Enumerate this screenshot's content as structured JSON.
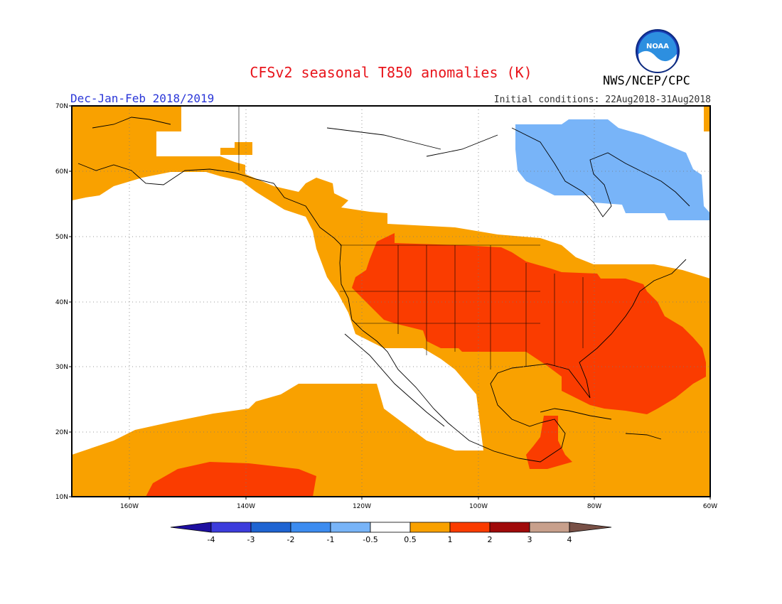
{
  "header": {
    "title": "CFSv2 seasonal T850 anomalies (K)",
    "agency": "NWS/NCEP/CPC",
    "logo_text": "NOAA",
    "season": "Dec-Jan-Feb 2018/2019",
    "initial_conditions": "Initial conditions: 22Aug2018-31Aug2018"
  },
  "map": {
    "projection": "equirectangular",
    "lon_range": [
      -171,
      -60
    ],
    "lat_range": [
      10,
      70
    ],
    "grid": "dotted 10° lat/lon",
    "lat_ticks": [
      "10N",
      "20N",
      "30N",
      "40N",
      "50N",
      "60N",
      "70N"
    ],
    "lon_ticks": [
      "160W",
      "140W",
      "120W",
      "100W",
      "80W",
      "60W"
    ],
    "anomaly_regions": [
      {
        "class": "-1 to -0.5",
        "color": "#78b4f8",
        "area": "Hudson Bay / Quebec / Labrador"
      },
      {
        "class": "0.5 to 1",
        "color": "#f9a100",
        "area": "Alaska, Pacific Northwest, Canada prairies, Gulf of Mexico, Caribbean, subtropical Pacific, western Atlantic"
      },
      {
        "class": "1 to 2",
        "color": "#fa3c00",
        "area": "Contiguous US interior and east, southeast Atlantic coast, Central America, subtropical Pacific near 12-15N 140-155W"
      }
    ]
  },
  "colorbar": {
    "labels": [
      "-4",
      "-3",
      "-2",
      "-1",
      "-0.5",
      "0.5",
      "1",
      "2",
      "3",
      "4"
    ],
    "colors": [
      "#1e0fa0",
      "#3c3cdc",
      "#1e64d2",
      "#3c8cf0",
      "#78b4f8",
      "#ffffff",
      "#f9a100",
      "#fa3c00",
      "#a00a0a",
      "#c8a08c",
      "#785046"
    ]
  }
}
